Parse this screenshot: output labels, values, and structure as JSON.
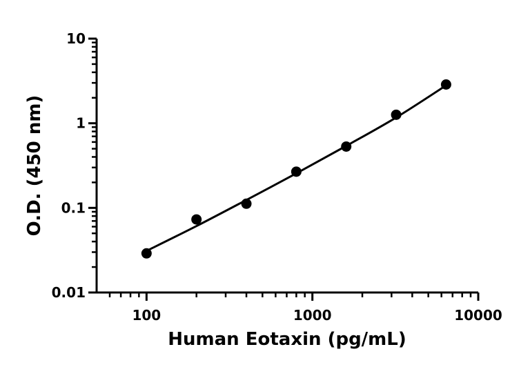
{
  "chart_data": {
    "type": "scatter",
    "title": "",
    "xlabel": "Human Eotaxin (pg/mL)",
    "ylabel": "O.D. (450 nm)",
    "x_scale": "log",
    "y_scale": "log",
    "xlim": [
      50,
      10000
    ],
    "ylim": [
      0.01,
      10
    ],
    "x_ticks": [
      100,
      1000,
      10000
    ],
    "x_tick_labels": [
      "100",
      "1000",
      "10000"
    ],
    "y_ticks": [
      0.01,
      0.1,
      1,
      10
    ],
    "y_tick_labels": [
      "0.01",
      "0.1",
      "1",
      "10"
    ],
    "grid": false,
    "series": [
      {
        "kind": "points",
        "color": "#000000",
        "x": [
          100,
          200,
          400,
          800,
          1600,
          3200,
          6400
        ],
        "y": [
          0.029,
          0.073,
          0.112,
          0.268,
          0.53,
          1.26,
          2.87
        ]
      },
      {
        "kind": "fit-line",
        "color": "#000000",
        "x": [
          100,
          200,
          400,
          800,
          1600,
          3200,
          6400
        ],
        "y": [
          0.031,
          0.061,
          0.124,
          0.256,
          0.54,
          1.17,
          2.8
        ]
      }
    ]
  }
}
